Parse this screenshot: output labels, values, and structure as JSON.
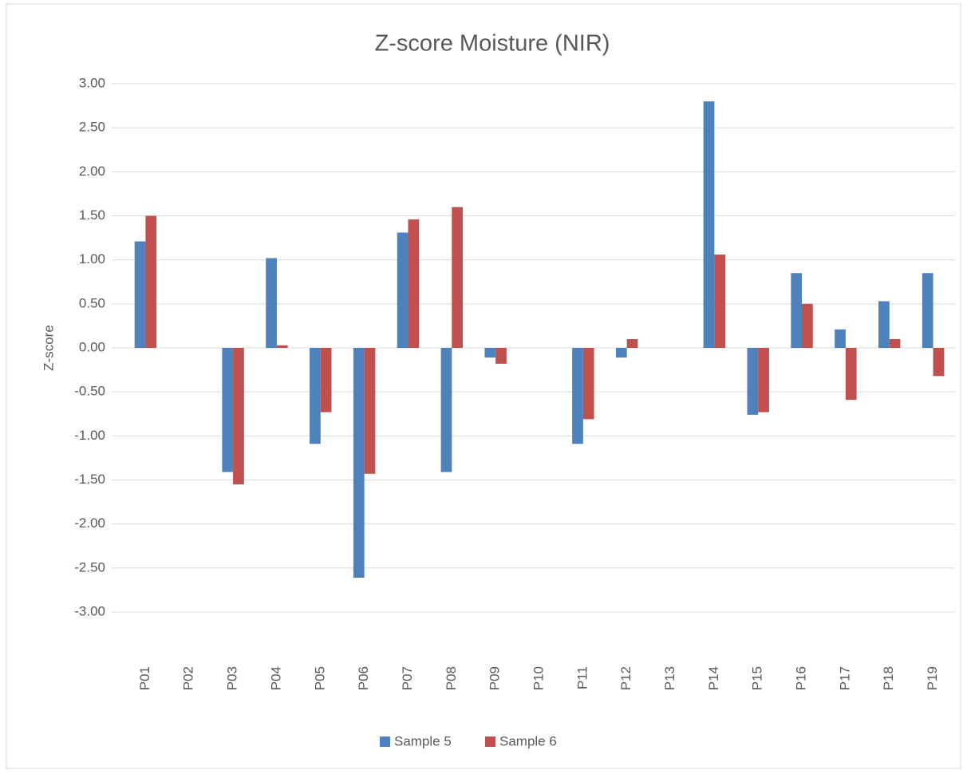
{
  "chart_data": {
    "type": "bar",
    "title": "Z-score Moisture (NIR)",
    "y_label": "Z-score",
    "categories": [
      "P01",
      "P02",
      "P03",
      "P04",
      "P05",
      "P06",
      "P07",
      "P08",
      "P09",
      "P10",
      "P11",
      "P12",
      "P13",
      "P14",
      "P15",
      "P16",
      "P17",
      "P18",
      "P19"
    ],
    "series": [
      {
        "name": "Sample 5",
        "color": "#4f81bd",
        "values": [
          1.21,
          null,
          -1.41,
          1.02,
          -1.09,
          -2.61,
          1.31,
          -1.41,
          -0.11,
          null,
          -1.09,
          -0.11,
          null,
          2.8,
          -0.76,
          0.85,
          0.21,
          0.53,
          0.85
        ]
      },
      {
        "name": "Sample 6",
        "color": "#c0504d",
        "values": [
          1.5,
          null,
          -1.55,
          0.03,
          -0.73,
          -1.43,
          1.46,
          1.6,
          -0.18,
          null,
          -0.81,
          0.1,
          null,
          1.06,
          -0.73,
          0.5,
          -0.59,
          0.1,
          -0.32
        ]
      }
    ],
    "ylim": [
      -3,
      3
    ],
    "yticks": [
      {
        "value": 3,
        "label": "3.00"
      },
      {
        "value": 2.5,
        "label": "2.50"
      },
      {
        "value": 2,
        "label": "2.00"
      },
      {
        "value": 1.5,
        "label": "1.50"
      },
      {
        "value": 1,
        "label": "1.00"
      },
      {
        "value": 0.5,
        "label": "0.50"
      },
      {
        "value": 0,
        "label": "0.00"
      },
      {
        "value": -0.5,
        "label": "-0.50"
      },
      {
        "value": -1,
        "label": "-1.00"
      },
      {
        "value": -1.5,
        "label": "-1.50"
      },
      {
        "value": -2,
        "label": "-2.00"
      },
      {
        "value": -2.5,
        "label": "-2.50"
      },
      {
        "value": -3,
        "label": "-3.00"
      }
    ],
    "grid": true,
    "legend": "bottom"
  }
}
